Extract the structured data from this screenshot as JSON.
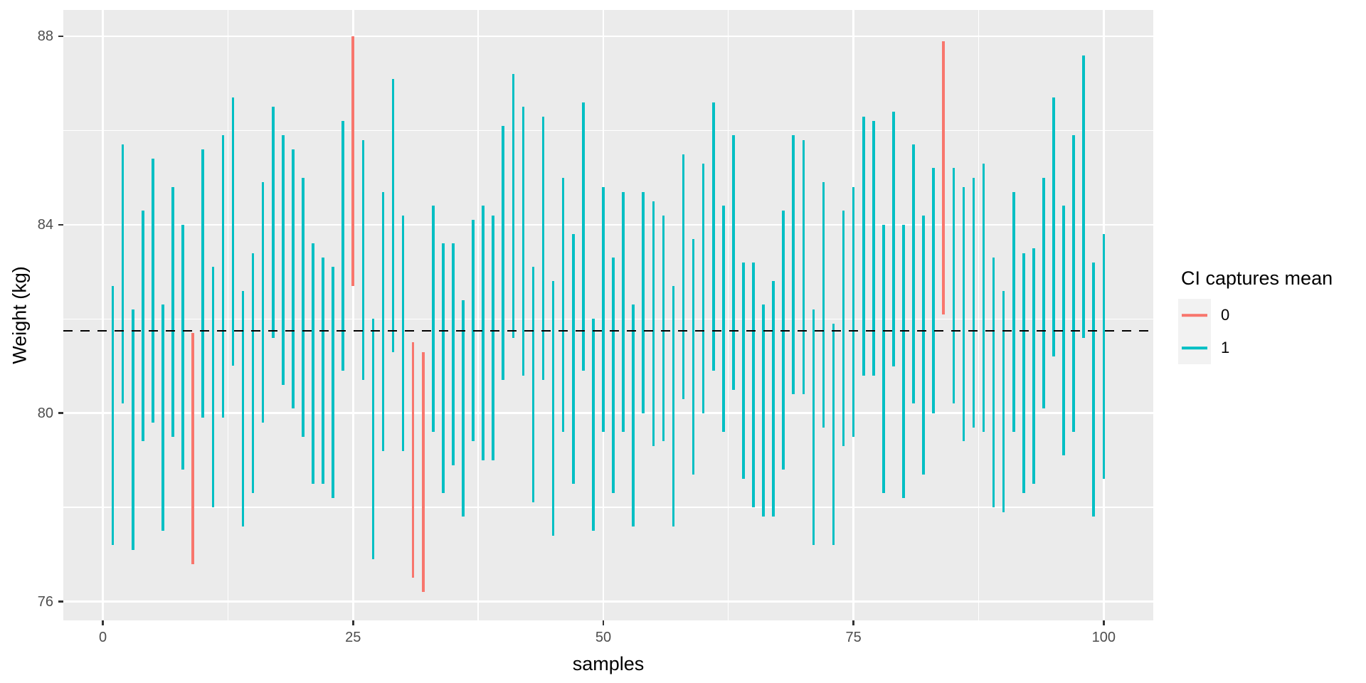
{
  "figure": {
    "background": "#FFFFFF",
    "panel_background": "#EBEBEB",
    "gridline_color": "#FFFFFF",
    "tick_color": "#333333",
    "axis_text_color": "#4D4D4D",
    "axis_title_color": "#000000"
  },
  "legend": {
    "title": "CI captures mean",
    "key_background": "#F2F2F2",
    "entries": [
      {
        "label": "0",
        "color": "#F8766D"
      },
      {
        "label": "1",
        "color": "#00BFC4"
      }
    ]
  },
  "chart_data": {
    "type": "linerange-interval",
    "title": "",
    "xlabel": "samples",
    "ylabel": "Weight (kg)",
    "xlim": [
      -3.95,
      104.95
    ],
    "ylim": [
      75.6,
      88.56
    ],
    "x_major_ticks": [
      0,
      25,
      50,
      75,
      100
    ],
    "x_minor_ticks": [
      12.5,
      37.5,
      62.5,
      87.5
    ],
    "y_major_ticks": [
      76,
      80,
      84,
      88
    ],
    "y_minor_ticks": [
      78,
      82,
      86
    ],
    "legend_title": "CI captures mean",
    "mean_line": {
      "value": 81.75,
      "style": "dashed",
      "color": "#000000"
    },
    "capture_colors": {
      "0": "#F8766D",
      "1": "#00BFC4"
    },
    "intervals_format": [
      "sample",
      "ci_low",
      "ci_high",
      "captures_mean"
    ],
    "intervals": [
      [
        1,
        77.2,
        82.7,
        1
      ],
      [
        2,
        80.2,
        85.7,
        1
      ],
      [
        3,
        77.1,
        82.2,
        1
      ],
      [
        4,
        79.4,
        84.3,
        1
      ],
      [
        5,
        79.8,
        85.4,
        1
      ],
      [
        6,
        77.5,
        82.3,
        1
      ],
      [
        7,
        79.5,
        84.8,
        1
      ],
      [
        8,
        78.8,
        84.0,
        1
      ],
      [
        9,
        76.8,
        81.7,
        0
      ],
      [
        10,
        79.9,
        85.6,
        1
      ],
      [
        11,
        78.0,
        83.1,
        1
      ],
      [
        12,
        79.9,
        85.9,
        1
      ],
      [
        13,
        81.0,
        86.7,
        1
      ],
      [
        14,
        77.6,
        82.6,
        1
      ],
      [
        15,
        78.3,
        83.4,
        1
      ],
      [
        16,
        79.8,
        84.9,
        1
      ],
      [
        17,
        81.6,
        86.5,
        1
      ],
      [
        18,
        80.6,
        85.9,
        1
      ],
      [
        19,
        80.1,
        85.6,
        1
      ],
      [
        20,
        79.5,
        85.0,
        1
      ],
      [
        21,
        78.5,
        83.6,
        1
      ],
      [
        22,
        78.5,
        83.3,
        1
      ],
      [
        23,
        78.2,
        83.1,
        1
      ],
      [
        24,
        80.9,
        86.2,
        1
      ],
      [
        25,
        82.7,
        88.0,
        0
      ],
      [
        26,
        80.7,
        85.8,
        1
      ],
      [
        27,
        76.9,
        82.0,
        1
      ],
      [
        28,
        79.2,
        84.7,
        1
      ],
      [
        29,
        81.3,
        87.1,
        1
      ],
      [
        30,
        79.2,
        84.2,
        1
      ],
      [
        31,
        76.5,
        81.5,
        0
      ],
      [
        32,
        76.2,
        81.3,
        0
      ],
      [
        33,
        79.6,
        84.4,
        1
      ],
      [
        34,
        78.3,
        83.6,
        1
      ],
      [
        35,
        78.9,
        83.6,
        1
      ],
      [
        36,
        77.8,
        82.4,
        1
      ],
      [
        37,
        79.4,
        84.1,
        1
      ],
      [
        38,
        79.0,
        84.4,
        1
      ],
      [
        39,
        79.0,
        84.2,
        1
      ],
      [
        40,
        80.7,
        86.1,
        1
      ],
      [
        41,
        81.6,
        87.2,
        1
      ],
      [
        42,
        80.8,
        86.5,
        1
      ],
      [
        43,
        78.1,
        83.1,
        1
      ],
      [
        44,
        80.7,
        86.3,
        1
      ],
      [
        45,
        77.4,
        82.8,
        1
      ],
      [
        46,
        79.6,
        85.0,
        1
      ],
      [
        47,
        78.5,
        83.8,
        1
      ],
      [
        48,
        80.9,
        86.6,
        1
      ],
      [
        49,
        77.5,
        82.0,
        1
      ],
      [
        50,
        79.6,
        84.8,
        1
      ],
      [
        51,
        78.3,
        83.3,
        1
      ],
      [
        52,
        79.6,
        84.7,
        1
      ],
      [
        53,
        77.6,
        82.3,
        1
      ],
      [
        54,
        80.0,
        84.7,
        1
      ],
      [
        55,
        79.3,
        84.5,
        1
      ],
      [
        56,
        79.4,
        84.2,
        1
      ],
      [
        57,
        77.6,
        82.7,
        1
      ],
      [
        58,
        80.3,
        85.5,
        1
      ],
      [
        59,
        78.7,
        83.7,
        1
      ],
      [
        60,
        80.0,
        85.3,
        1
      ],
      [
        61,
        80.9,
        86.6,
        1
      ],
      [
        62,
        79.6,
        84.4,
        1
      ],
      [
        63,
        80.5,
        85.9,
        1
      ],
      [
        64,
        78.6,
        83.2,
        1
      ],
      [
        65,
        78.0,
        83.2,
        1
      ],
      [
        66,
        77.8,
        82.3,
        1
      ],
      [
        67,
        77.8,
        82.8,
        1
      ],
      [
        68,
        78.8,
        84.3,
        1
      ],
      [
        69,
        80.4,
        85.9,
        1
      ],
      [
        70,
        80.4,
        85.8,
        1
      ],
      [
        71,
        77.2,
        82.2,
        1
      ],
      [
        72,
        79.7,
        84.9,
        1
      ],
      [
        73,
        77.2,
        81.9,
        1
      ],
      [
        74,
        79.3,
        84.3,
        1
      ],
      [
        75,
        79.5,
        84.8,
        1
      ],
      [
        76,
        80.8,
        86.3,
        1
      ],
      [
        77,
        80.8,
        86.2,
        1
      ],
      [
        78,
        78.3,
        84.0,
        1
      ],
      [
        79,
        81.0,
        86.4,
        1
      ],
      [
        80,
        78.2,
        84.0,
        1
      ],
      [
        81,
        80.2,
        85.7,
        1
      ],
      [
        82,
        78.7,
        84.2,
        1
      ],
      [
        83,
        80.0,
        85.2,
        1
      ],
      [
        84,
        82.1,
        87.9,
        0
      ],
      [
        85,
        80.2,
        85.2,
        1
      ],
      [
        86,
        79.4,
        84.8,
        1
      ],
      [
        87,
        79.7,
        85.0,
        1
      ],
      [
        88,
        79.6,
        85.3,
        1
      ],
      [
        89,
        78.0,
        83.3,
        1
      ],
      [
        90,
        77.9,
        82.6,
        1
      ],
      [
        91,
        79.6,
        84.7,
        1
      ],
      [
        92,
        78.3,
        83.4,
        1
      ],
      [
        93,
        78.5,
        83.5,
        1
      ],
      [
        94,
        80.1,
        85.0,
        1
      ],
      [
        95,
        81.2,
        86.7,
        1
      ],
      [
        96,
        79.1,
        84.4,
        1
      ],
      [
        97,
        79.6,
        85.9,
        1
      ],
      [
        98,
        81.6,
        87.6,
        1
      ],
      [
        99,
        77.8,
        83.2,
        1
      ],
      [
        100,
        78.6,
        83.8,
        1
      ]
    ]
  }
}
